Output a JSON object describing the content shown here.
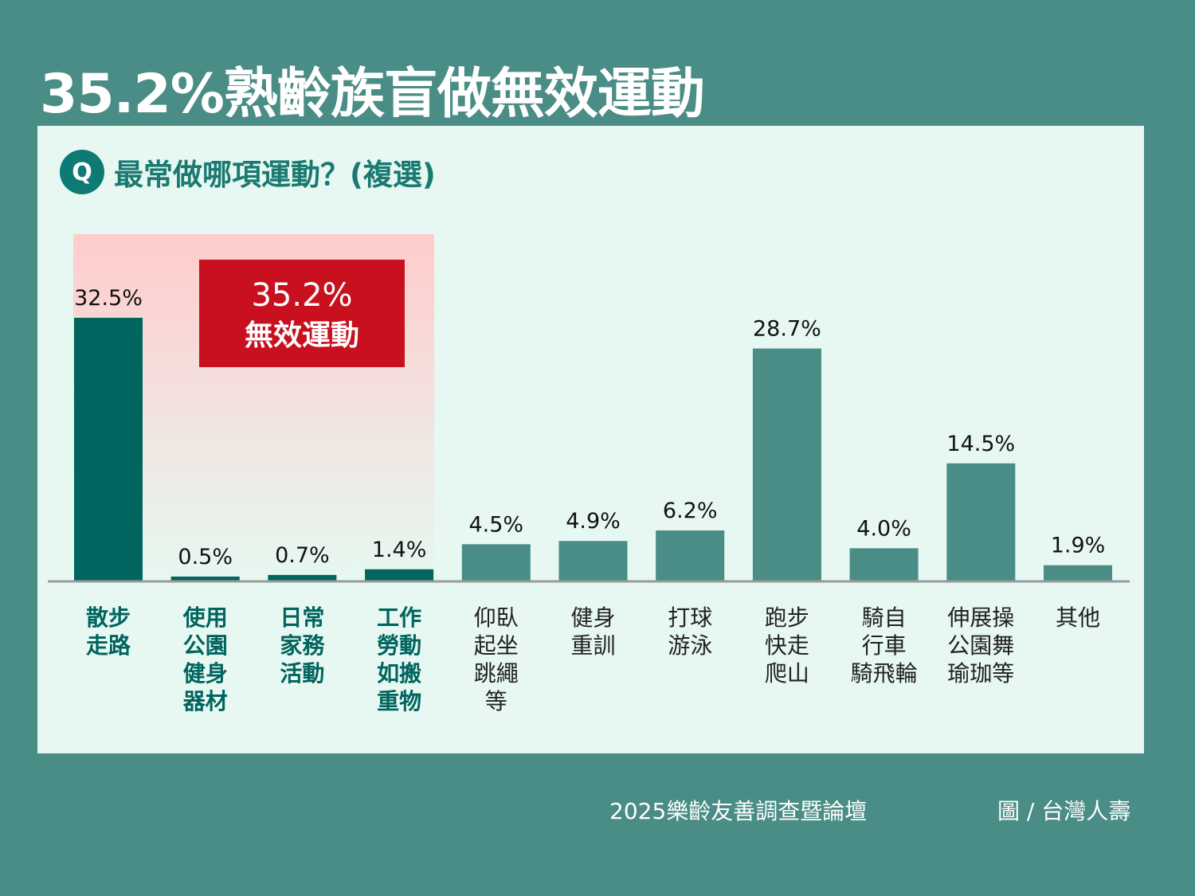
{
  "title": "35.2%熟齡族盲做無效運動",
  "question": {
    "icon": "Q",
    "text": "最常做哪項運動？(複選)"
  },
  "highlight": {
    "value": "35.2%",
    "label": "無效運動"
  },
  "footer": {
    "source": "2025樂齡友善調查暨論壇",
    "credit": "圖 / 台灣人壽"
  },
  "colors": {
    "background": "#4a8c86",
    "panel": "#e6f8f1",
    "bar_ineffective": "#00645f",
    "bar_other": "#4a8c86",
    "highlight_box": "#c8101e",
    "highlight_region": "#ffcccc",
    "title_text": "#ffffff",
    "question_text": "#1a7a72",
    "category_ineffective_text": "#00645f",
    "category_other_text": "#222222"
  },
  "chart_data": {
    "type": "bar",
    "categories": [
      [
        "散步",
        "走路"
      ],
      [
        "使用",
        "公園",
        "健身",
        "器材"
      ],
      [
        "日常",
        "家務",
        "活動"
      ],
      [
        "工作",
        "勞動",
        "如搬",
        "重物"
      ],
      [
        "仰臥",
        "起坐",
        "跳繩",
        "等"
      ],
      [
        "健身",
        "重訓"
      ],
      [
        "打球",
        "游泳"
      ],
      [
        "跑步",
        "快走",
        "爬山"
      ],
      [
        "騎自",
        "行車",
        "騎飛輪"
      ],
      [
        "伸展操",
        "公園舞",
        "瑜珈等"
      ],
      [
        "其他"
      ]
    ],
    "values": [
      32.5,
      0.5,
      0.7,
      1.4,
      4.5,
      4.9,
      6.2,
      28.7,
      4.0,
      14.5,
      1.9
    ],
    "value_labels": [
      "32.5%",
      "0.5%",
      "0.7%",
      "1.4%",
      "4.5%",
      "4.9%",
      "6.2%",
      "28.7%",
      "4.0%",
      "14.5%",
      "1.9%"
    ],
    "highlighted_group": [
      0,
      1,
      2,
      3
    ],
    "ylim": [
      0,
      32.5
    ],
    "grid": false,
    "legend": "none"
  }
}
